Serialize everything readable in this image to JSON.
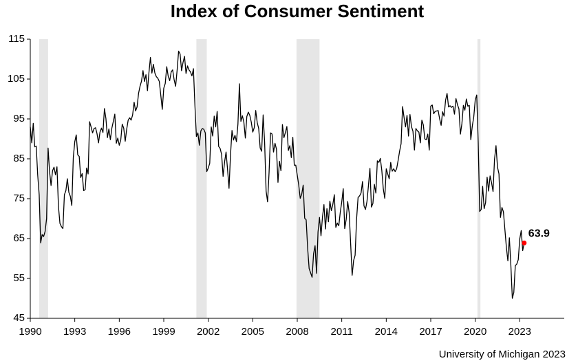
{
  "chart_data": {
    "type": "line",
    "title": "Index of Consumer Sentiment",
    "source": "University of Michigan 2023",
    "xlim": [
      1990,
      2026
    ],
    "xticks": [
      1990,
      1993,
      1996,
      1999,
      2002,
      2005,
      2008,
      2011,
      2014,
      2017,
      2020,
      2023
    ],
    "ylim": [
      45,
      115
    ],
    "yticks": [
      45,
      55,
      65,
      75,
      85,
      95,
      105,
      115
    ],
    "grid": false,
    "recessions": [
      [
        1990.6,
        1991.2
      ],
      [
        2001.2,
        2001.9
      ],
      [
        2007.95,
        2009.5
      ],
      [
        2020.15,
        2020.35
      ]
    ],
    "recession_color": "#e6e6e6",
    "last_point_color": "#ff0000",
    "x": [
      1990,
      1990.1,
      1990.2,
      1990.3,
      1990.4,
      1990.5,
      1990.6,
      1990.7,
      1990.8,
      1990.9,
      1991,
      1991.1,
      1991.2,
      1991.3,
      1991.4,
      1991.5,
      1991.6,
      1991.7,
      1991.8,
      1991.9,
      1992,
      1992.1,
      1992.2,
      1992.3,
      1992.4,
      1992.5,
      1992.6,
      1992.7,
      1992.8,
      1992.9,
      1993,
      1993.1,
      1993.2,
      1993.3,
      1993.4,
      1993.5,
      1993.6,
      1993.7,
      1993.8,
      1993.9,
      1994,
      1994.1,
      1994.2,
      1994.3,
      1994.4,
      1994.5,
      1994.6,
      1994.7,
      1994.8,
      1994.9,
      1995,
      1995.1,
      1995.2,
      1995.3,
      1995.4,
      1995.5,
      1995.6,
      1995.7,
      1995.8,
      1995.9,
      1996,
      1996.1,
      1996.2,
      1996.3,
      1996.4,
      1996.5,
      1996.6,
      1996.7,
      1996.8,
      1996.9,
      1997,
      1997.1,
      1997.2,
      1997.3,
      1997.4,
      1997.5,
      1997.6,
      1997.7,
      1997.8,
      1997.9,
      1998,
      1998.1,
      1998.2,
      1998.3,
      1998.4,
      1998.5,
      1998.6,
      1998.7,
      1998.8,
      1998.9,
      1999,
      1999.1,
      1999.2,
      1999.3,
      1999.4,
      1999.5,
      1999.6,
      1999.7,
      1999.8,
      1999.9,
      2000,
      2000.1,
      2000.2,
      2000.3,
      2000.4,
      2000.5,
      2000.6,
      2000.7,
      2000.8,
      2000.9,
      2001,
      2001.1,
      2001.2,
      2001.3,
      2001.4,
      2001.5,
      2001.6,
      2001.7,
      2001.8,
      2001.9,
      2002,
      2002.1,
      2002.2,
      2002.3,
      2002.4,
      2002.5,
      2002.6,
      2002.7,
      2002.8,
      2002.9,
      2003,
      2003.1,
      2003.2,
      2003.3,
      2003.4,
      2003.5,
      2003.6,
      2003.7,
      2003.8,
      2003.9,
      2004,
      2004.1,
      2004.2,
      2004.3,
      2004.4,
      2004.5,
      2004.6,
      2004.7,
      2004.8,
      2004.9,
      2005,
      2005.1,
      2005.2,
      2005.3,
      2005.4,
      2005.5,
      2005.6,
      2005.7,
      2005.8,
      2005.9,
      2006,
      2006.1,
      2006.2,
      2006.3,
      2006.4,
      2006.5,
      2006.6,
      2006.7,
      2006.8,
      2006.9,
      2007,
      2007.1,
      2007.2,
      2007.3,
      2007.4,
      2007.5,
      2007.6,
      2007.7,
      2007.8,
      2007.9,
      2008,
      2008.1,
      2008.2,
      2008.3,
      2008.4,
      2008.5,
      2008.6,
      2008.7,
      2008.8,
      2008.9,
      2009,
      2009.1,
      2009.2,
      2009.3,
      2009.4,
      2009.5,
      2009.6,
      2009.7,
      2009.8,
      2009.9,
      2010,
      2010.1,
      2010.2,
      2010.3,
      2010.4,
      2010.5,
      2010.6,
      2010.7,
      2010.8,
      2010.9,
      2011,
      2011.1,
      2011.2,
      2011.3,
      2011.4,
      2011.5,
      2011.6,
      2011.7,
      2011.8,
      2011.9,
      2012,
      2012.1,
      2012.2,
      2012.3,
      2012.4,
      2012.5,
      2012.6,
      2012.7,
      2012.8,
      2012.9,
      2013,
      2013.1,
      2013.2,
      2013.3,
      2013.4,
      2013.5,
      2013.6,
      2013.7,
      2013.8,
      2013.9,
      2014,
      2014.1,
      2014.2,
      2014.3,
      2014.4,
      2014.5,
      2014.6,
      2014.7,
      2014.8,
      2014.9,
      2015,
      2015.1,
      2015.2,
      2015.3,
      2015.4,
      2015.5,
      2015.6,
      2015.7,
      2015.8,
      2015.9,
      2016,
      2016.1,
      2016.2,
      2016.3,
      2016.4,
      2016.5,
      2016.6,
      2016.7,
      2016.8,
      2016.9,
      2017,
      2017.1,
      2017.2,
      2017.3,
      2017.4,
      2017.5,
      2017.6,
      2017.7,
      2017.8,
      2017.9,
      2018,
      2018.1,
      2018.2,
      2018.3,
      2018.4,
      2018.5,
      2018.6,
      2018.7,
      2018.8,
      2018.9,
      2019,
      2019.1,
      2019.2,
      2019.3,
      2019.4,
      2019.5,
      2019.6,
      2019.7,
      2019.8,
      2019.9,
      2020,
      2020.1,
      2020.2,
      2020.3,
      2020.4,
      2020.5,
      2020.6,
      2020.7,
      2020.8,
      2020.9,
      2021,
      2021.1,
      2021.2,
      2021.3,
      2021.4,
      2021.5,
      2021.6,
      2021.7,
      2021.8,
      2021.9,
      2022,
      2022.1,
      2022.2,
      2022.3,
      2022.4,
      2022.5,
      2022.6,
      2022.7,
      2022.8,
      2022.9,
      2023,
      2023.1,
      2023.2,
      2023.3
    ],
    "series": [
      {
        "color": "#000000",
        "values": [
          93,
          89,
          93.9,
          88,
          88.2,
          81,
          76,
          63.9,
          66,
          65.5,
          66.8,
          70,
          87.7,
          81.8,
          78.3,
          82,
          82.9,
          81,
          83,
          73,
          68.8,
          68,
          67.5,
          76,
          77,
          80,
          76.6,
          75.6,
          73.3,
          85.3,
          89.3,
          91,
          86,
          85.6,
          80.3,
          81.3,
          77,
          77.3,
          82.7,
          81.2,
          94.3,
          93,
          91.5,
          92.6,
          92.8,
          91.3,
          89,
          91.7,
          92.7,
          91.6,
          97.6,
          95.1,
          90.3,
          92.5,
          89.8,
          92.7,
          94.4,
          96.2,
          88.9,
          90.2,
          88.4,
          89.7,
          93.7,
          92.7,
          89.4,
          92.4,
          94.7,
          95.3,
          94.7,
          96,
          99.2,
          97,
          98,
          101.4,
          103.2,
          104.5,
          107.1,
          104.4,
          106.1,
          102.1,
          106.6,
          110.4,
          106.5,
          108.7,
          106.5,
          105.6,
          105.2,
          104.4,
          100.9,
          97.4,
          102.7,
          103.9,
          108.1,
          105.7,
          104.6,
          106.8,
          107.3,
          104.8,
          103.2,
          107.2,
          112,
          111.3,
          107.1,
          109.2,
          110.7,
          106.4,
          108.3,
          107.3,
          106.8,
          105.8,
          107.6,
          98.4,
          90.6,
          91.5,
          88.4,
          92,
          92.6,
          92.4,
          91.5,
          81.8,
          82.7,
          83.9,
          93,
          90.7,
          95.7,
          93,
          96.9,
          88.1,
          87.6,
          86.1,
          80.6,
          84.2,
          86.7,
          82.4,
          77.6,
          86,
          92.1,
          89.7,
          90.9,
          89.3,
          93.7,
          103.8,
          94.4,
          95.8,
          94.2,
          90.2,
          95.6,
          96.7,
          95.9,
          94.2,
          91.7,
          92.8,
          97.1,
          94.1,
          92.6,
          87.7,
          86.9,
          96,
          89.1,
          76.9,
          74.2,
          81.6,
          91.5,
          91.2,
          86.7,
          88.9,
          87.4,
          79.1,
          84.4,
          82,
          93.6,
          90.3,
          91.6,
          93.1,
          87.1,
          88.3,
          85.3,
          90.4,
          83.4,
          83.4,
          80.9,
          78.4,
          75.1,
          76.1,
          78.4,
          70.1,
          69.7,
          62.6,
          57.5,
          56.4,
          55.3,
          61.2,
          63.2,
          56.3,
          66.7,
          70.3,
          65.7,
          70.4,
          73.5,
          67.4,
          72.5,
          69.2,
          74.4,
          72,
          73.6,
          76,
          67.8,
          68.9,
          68.2,
          71.6,
          74.2,
          77.5,
          67.5,
          69.8,
          74.3,
          71.5,
          63.7,
          55.8,
          59.5,
          60.8,
          69.9,
          75.3,
          75.7,
          76.4,
          79.3,
          73.2,
          72.3,
          74.3,
          78.3,
          82.6,
          72.9,
          73.8,
          78.6,
          76.4,
          84.5,
          84.1,
          85.1,
          82.1,
          77.5,
          75.1,
          82.5,
          81.2,
          80,
          84.1,
          81.9,
          82.5,
          81.8,
          82.5,
          84.6,
          86.9,
          88.8,
          98.1,
          95.4,
          93,
          95.9,
          90.7,
          96.1,
          93.1,
          91.9,
          87.2,
          92.6,
          92,
          91.7,
          89,
          94.7,
          93.5,
          90,
          89.8,
          91.2,
          87.2,
          98.2,
          98.5,
          96.3,
          96.9,
          97,
          97.1,
          95,
          93.4,
          96.8,
          95.7,
          99.7,
          101.4,
          98,
          98.3,
          97.9,
          98.2,
          96.2,
          100.1,
          98.6,
          97.5,
          91.2,
          93.8,
          98.4,
          97.2,
          100,
          98.2,
          98.4,
          89.8,
          93.2,
          95.5,
          99.8,
          101,
          89.1,
          71.8,
          72.3,
          78.1,
          72.5,
          74.1,
          80.4,
          76.9,
          80.7,
          79,
          76.8,
          84.9,
          88.3,
          82.9,
          81.2,
          70.3,
          72.8,
          71.7,
          67.2,
          62.8,
          59.4,
          65.2,
          58.4,
          50,
          51.5,
          58.2,
          58.6,
          59.7,
          64.9,
          67,
          62,
          63.9
        ]
      }
    ]
  }
}
